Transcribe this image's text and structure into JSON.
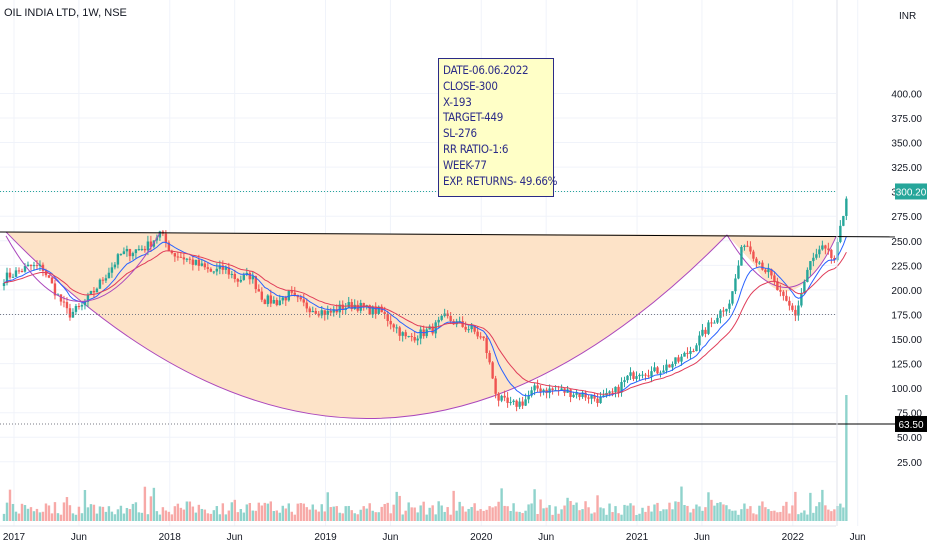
{
  "header": {
    "title": "OIL INDIA LTD, 1W, NSE",
    "currency": "INR"
  },
  "annotation": {
    "lines": [
      "DATE-06.06.2022",
      "CLOSE-300",
      "X-193",
      "TARGET-449",
      "SL-276",
      "RR RATIO-1:6",
      "WEEK-77",
      "EXP. RETURNS- 49.66%"
    ]
  },
  "colors": {
    "up": "#26a69a",
    "down": "#ef5350",
    "vol_up": "#8fd3cc",
    "vol_down": "#f7a9a7",
    "ema_fast": "#2962ff",
    "ema_slow": "#e03e5a",
    "cup_fill": "#fde3c8",
    "cup_line": "#ab47bc",
    "resistance": "#000000",
    "note_text": "#2b2b87",
    "note_bg": "#ffffc7",
    "last_price_badge": "#26a69a",
    "support_badge": "#000000"
  },
  "chart_data": {
    "type": "candlestick",
    "title": "OIL INDIA LTD, 1W, NSE",
    "y_axis": {
      "label": "INR",
      "ticks": [
        400,
        375,
        350,
        325,
        300,
        275,
        250,
        225,
        200,
        175,
        150,
        125,
        100,
        75,
        50,
        25
      ],
      "tick_labels": [
        "400.00",
        "375.00",
        "350.00",
        "325.00",
        "300.00",
        "275.00",
        "250.00",
        "225.00",
        "200.00",
        "175.00",
        "150.00",
        "125.00",
        "100.00",
        "75.00",
        "50.00",
        "25.00"
      ]
    },
    "x_axis": {
      "tick_labels": [
        "2017",
        "Jun",
        "2018",
        "Jun",
        "2019",
        "Jun",
        "2020",
        "Jun",
        "2021",
        "Jun",
        "2022",
        "Jun"
      ],
      "tick_dates": [
        "2017-01",
        "2017-06",
        "2018-01",
        "2018-06",
        "2019-01",
        "2019-06",
        "2020-01",
        "2020-06",
        "2021-01",
        "2021-06",
        "2022-01",
        "2022-06"
      ]
    },
    "price_labels": {
      "last": "300.20",
      "support": "63.50"
    },
    "levels": {
      "last_price": 300.2,
      "support": 63.5,
      "dotted_level": 175,
      "resistance_start": 259,
      "resistance_end": 254
    },
    "price_path": [
      [
        "2017-01",
        212
      ],
      [
        "2017-03",
        224
      ],
      [
        "2017-04",
        222
      ],
      [
        "2017-05",
        197
      ],
      [
        "2017-06",
        175
      ],
      [
        "2017-07",
        183
      ],
      [
        "2017-08",
        200
      ],
      [
        "2017-10",
        236
      ],
      [
        "2017-12",
        244
      ],
      [
        "2018-01",
        258
      ],
      [
        "2018-02",
        237
      ],
      [
        "2018-03",
        232
      ],
      [
        "2018-04",
        225
      ],
      [
        "2018-05",
        218
      ],
      [
        "2018-06",
        222
      ],
      [
        "2018-07",
        210
      ],
      [
        "2018-08",
        215
      ],
      [
        "2018-09",
        190
      ],
      [
        "2018-10",
        188
      ],
      [
        "2018-11",
        195
      ],
      [
        "2018-12",
        185
      ],
      [
        "2019-01",
        180
      ],
      [
        "2019-02",
        176
      ],
      [
        "2019-03",
        182
      ],
      [
        "2019-04",
        185
      ],
      [
        "2019-05",
        180
      ],
      [
        "2019-06",
        178
      ],
      [
        "2019-07",
        165
      ],
      [
        "2019-08",
        150
      ],
      [
        "2019-09",
        155
      ],
      [
        "2019-10",
        160
      ],
      [
        "2019-11",
        172
      ],
      [
        "2019-12",
        165
      ],
      [
        "2020-01",
        160
      ],
      [
        "2020-02",
        148
      ],
      [
        "2020-03",
        90
      ],
      [
        "2020-04",
        82
      ],
      [
        "2020-05",
        86
      ],
      [
        "2020-06",
        100
      ],
      [
        "2020-07",
        98
      ],
      [
        "2020-08",
        97
      ],
      [
        "2020-09",
        95
      ],
      [
        "2020-10",
        92
      ],
      [
        "2020-11",
        88
      ],
      [
        "2020-12",
        95
      ],
      [
        "2021-01",
        110
      ],
      [
        "2021-02",
        118
      ],
      [
        "2021-03",
        116
      ],
      [
        "2021-04",
        122
      ],
      [
        "2021-05",
        128
      ],
      [
        "2021-06",
        140
      ],
      [
        "2021-07",
        158
      ],
      [
        "2021-08",
        175
      ],
      [
        "2021-09",
        190
      ],
      [
        "2021-10",
        250
      ],
      [
        "2021-11",
        232
      ],
      [
        "2021-12",
        215
      ],
      [
        "2022-01",
        190
      ],
      [
        "2022-02",
        175
      ],
      [
        "2022-03",
        225
      ],
      [
        "2022-04",
        242
      ],
      [
        "2022-05",
        230
      ],
      [
        "2022-06",
        300.2
      ]
    ]
  }
}
